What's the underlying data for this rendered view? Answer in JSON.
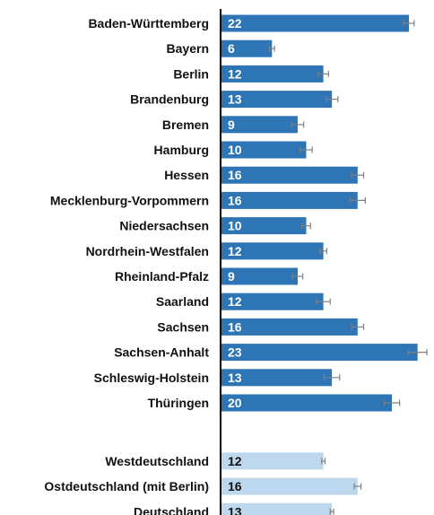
{
  "chart_data": {
    "type": "bar",
    "orientation": "horizontal",
    "grid": false,
    "legend": "none",
    "colors": {
      "state": "#2e75b6",
      "aggregate": "#bdd7ee",
      "state_label": "#ffffff",
      "aggregate_label": "#111111",
      "error_bar": "#7f7f7f",
      "axis": "#000000"
    },
    "series": [
      {
        "group": "states",
        "categories": [
          "Baden-Württemberg",
          "Bayern",
          "Berlin",
          "Brandenburg",
          "Bremen",
          "Hamburg",
          "Hessen",
          "Mecklenburg-Vorpommern",
          "Niedersachsen",
          "Nordrhein-Westfalen",
          "Rheinland-Pfalz",
          "Saarland",
          "Sachsen",
          "Sachsen-Anhalt",
          "Schleswig-Holstein",
          "Thüringen"
        ],
        "values": [
          22,
          6,
          12,
          13,
          9,
          10,
          16,
          16,
          10,
          12,
          9,
          12,
          16,
          23,
          13,
          20
        ],
        "error": [
          0.6,
          0.3,
          0.6,
          0.7,
          0.7,
          0.7,
          0.7,
          0.9,
          0.5,
          0.4,
          0.6,
          0.8,
          0.7,
          1.1,
          0.9,
          0.9
        ]
      },
      {
        "group": "aggregates",
        "categories": [
          "Westdeutschland",
          "Ostdeutschland (mit Berlin)",
          "Deutschland"
        ],
        "values": [
          12,
          16,
          13
        ],
        "error": [
          0.2,
          0.4,
          0.2
        ]
      }
    ],
    "xlim": [
      0,
      24
    ]
  }
}
